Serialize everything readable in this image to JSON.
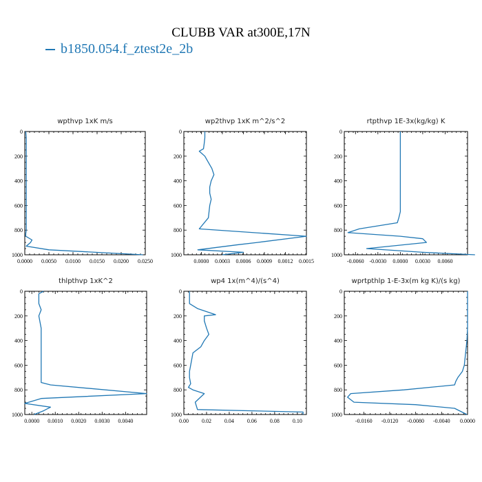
{
  "title": "CLUBB VAR at300E,17N",
  "legend_label": "b1850.054.f_ztest2e_2b",
  "colors": {
    "series": "#1f77b4",
    "axes": "#000000"
  },
  "chart_data": [
    {
      "type": "line",
      "title": "wpthvp  1xK m/s",
      "series": [
        {
          "name": "b1850.054.f_ztest2e_2b",
          "x": [
            0.0002,
            0.0003,
            0.0003,
            0.0003,
            0.0003,
            0.0003,
            0.0003,
            0.0003,
            0.0003,
            0.0003,
            0.0003,
            0.0003,
            0.0003,
            0.0003,
            0.0002,
            0.0002,
            0.0015,
            0.0012,
            0.0003,
            0.005,
            0.0245
          ],
          "y": [
            0,
            50,
            100,
            150,
            200,
            250,
            300,
            400,
            500,
            600,
            700,
            750,
            780,
            800,
            830,
            850,
            880,
            900,
            930,
            960,
            1000
          ]
        }
      ],
      "xlim": [
        0.0,
        0.025
      ],
      "ylim": [
        1000,
        0
      ],
      "xticks": [
        0.0,
        0.005,
        0.01,
        0.015,
        0.02,
        0.025
      ],
      "xticklabels": [
        "0.0000",
        "0.0050",
        "0.0100",
        "0.0150",
        "0.0200",
        "0.0250"
      ],
      "yticks": [
        0,
        200,
        400,
        600,
        800,
        1000
      ],
      "yticklabels": [
        "0",
        "200",
        "400",
        "600",
        "800",
        "1000"
      ]
    },
    {
      "type": "line",
      "title": "wp2thvp  1xK m^2/s^2",
      "series": [
        {
          "name": "b1850.054.f_ztest2e_2b",
          "x": [
            5e-05,
            5e-05,
            4e-05,
            3e-05,
            -3e-05,
            5e-05,
            0.0001,
            0.00015,
            0.00018,
            0.00014,
            0.00012,
            0.00012,
            0.00014,
            0.00012,
            0.0001,
            -3e-05,
            0.0015,
            0.0008,
            0.0005,
            -5e-05,
            0.0006,
            0.0003
          ],
          "y": [
            0,
            50,
            100,
            140,
            160,
            200,
            250,
            300,
            350,
            400,
            450,
            500,
            550,
            600,
            700,
            790,
            850,
            900,
            920,
            960,
            980,
            1000
          ]
        }
      ],
      "xlim": [
        -0.00025,
        0.0015
      ],
      "ylim": [
        1000,
        0
      ],
      "xticks": [
        0.0,
        0.0003,
        0.0006,
        0.0009,
        0.0012,
        0.0015
      ],
      "xticklabels": [
        "0.0000",
        "0.0003",
        "0.0006",
        "0.0009",
        "0.0012",
        "0.0015"
      ],
      "yticks": [
        0,
        200,
        400,
        600,
        800,
        1000
      ],
      "yticklabels": [
        "0",
        "200",
        "400",
        "600",
        "800",
        "1000"
      ]
    },
    {
      "type": "line",
      "title": "rtpthvp  1E-3x(kg/kg) K",
      "series": [
        {
          "name": "b1850.054.f_ztest2e_2b",
          "x": [
            0.0,
            0.0,
            0.0,
            0.0,
            0.0,
            0.0,
            0.0,
            0.0,
            -0.0002,
            -0.0004,
            -0.0055,
            -0.007,
            0.0,
            0.003,
            0.0035,
            -0.0045,
            0.003,
            0.01
          ],
          "y": [
            0,
            100,
            200,
            300,
            400,
            500,
            600,
            650,
            700,
            740,
            790,
            820,
            850,
            870,
            900,
            950,
            980,
            1000
          ]
        }
      ],
      "xlim": [
        -0.0075,
        0.009
      ],
      "ylim": [
        1000,
        0
      ],
      "xticks": [
        -0.006,
        -0.003,
        0.0,
        0.003,
        0.006
      ],
      "xticklabels": [
        "-0.0060",
        "-0.0030",
        "0.0000",
        "0.0030",
        "0.0060"
      ],
      "yticks": [
        0,
        200,
        400,
        600,
        800,
        1000
      ],
      "yticklabels": [
        "0",
        "200",
        "400",
        "600",
        "800",
        "1000"
      ]
    },
    {
      "type": "line",
      "title": "thlpthvp  1xK^2",
      "series": [
        {
          "name": "b1850.054.f_ztest2e_2b",
          "x": [
            0.0005,
            0.0003,
            0.0003,
            0.0004,
            0.0003,
            0.0004,
            0.0004,
            0.0004,
            0.0004,
            0.0004,
            0.0004,
            0.0004,
            0.0004,
            0.0008,
            0.0049,
            0.0004,
            -0.0003,
            0.0008,
            0.0005,
            0.0001
          ],
          "y": [
            0,
            20,
            100,
            150,
            200,
            300,
            400,
            500,
            600,
            680,
            700,
            720,
            740,
            760,
            830,
            870,
            910,
            940,
            970,
            1000
          ]
        }
      ],
      "xlim": [
        -0.0003,
        0.0049
      ],
      "ylim": [
        1000,
        0
      ],
      "xticks": [
        0.0,
        0.001,
        0.002,
        0.003,
        0.004
      ],
      "xticklabels": [
        "0.0000",
        "0.0010",
        "0.0020",
        "0.0030",
        "0.0040"
      ],
      "yticks": [
        0,
        200,
        400,
        600,
        800,
        1000
      ],
      "yticklabels": [
        "0",
        "200",
        "400",
        "600",
        "800",
        "1000"
      ]
    },
    {
      "type": "line",
      "title": "wp4  1x(m^4)/(s^4)",
      "series": [
        {
          "name": "b1850.054.f_ztest2e_2b",
          "x": [
            0.005,
            0.005,
            0.005,
            0.012,
            0.028,
            0.018,
            0.018,
            0.02,
            0.022,
            0.018,
            0.015,
            0.008,
            0.006,
            0.005,
            0.005,
            0.006,
            0.004,
            0.008,
            0.018,
            0.01,
            0.012,
            0.105,
            0.105
          ],
          "y": [
            0,
            50,
            100,
            140,
            190,
            200,
            240,
            300,
            350,
            400,
            450,
            500,
            600,
            650,
            700,
            750,
            780,
            800,
            830,
            900,
            960,
            980,
            1000
          ]
        }
      ],
      "xlim": [
        0.0,
        0.108
      ],
      "ylim": [
        1000,
        0
      ],
      "xticks": [
        0.0,
        0.02,
        0.04,
        0.06,
        0.08,
        0.1
      ],
      "xticklabels": [
        "0.00",
        "0.02",
        "0.04",
        "0.06",
        "0.08",
        "0.10"
      ],
      "yticks": [
        0,
        200,
        400,
        600,
        800,
        1000
      ],
      "yticklabels": [
        "0",
        "200",
        "400",
        "600",
        "800",
        "1000"
      ]
    },
    {
      "type": "line",
      "title": "wprtpthlp  1-E-3x(m kg K)/(s kg)",
      "series": [
        {
          "name": "b1850.054.f_ztest2e_2b",
          "x": [
            0.0,
            0.0,
            0.0,
            0.0,
            -0.0001,
            -0.0003,
            -0.0005,
            -0.0008,
            -0.0015,
            -0.0018,
            -0.002,
            -0.0098,
            -0.018,
            -0.0185,
            -0.0175,
            -0.008,
            -0.002,
            -0.0001
          ],
          "y": [
            0,
            100,
            200,
            300,
            400,
            500,
            600,
            650,
            700,
            730,
            760,
            800,
            830,
            860,
            900,
            920,
            950,
            1000
          ]
        }
      ],
      "xlim": [
        -0.019,
        0.0
      ],
      "ylim": [
        1000,
        0
      ],
      "xticks": [
        -0.016,
        -0.012,
        -0.008,
        -0.004,
        0.0
      ],
      "xticklabels": [
        "-0.0160",
        "-0.0120",
        "-0.0080",
        "-0.0040",
        "0.0000"
      ],
      "yticks": [
        0,
        200,
        400,
        600,
        800,
        1000
      ],
      "yticklabels": [
        "0",
        "200",
        "400",
        "600",
        "800",
        "1000"
      ]
    }
  ]
}
